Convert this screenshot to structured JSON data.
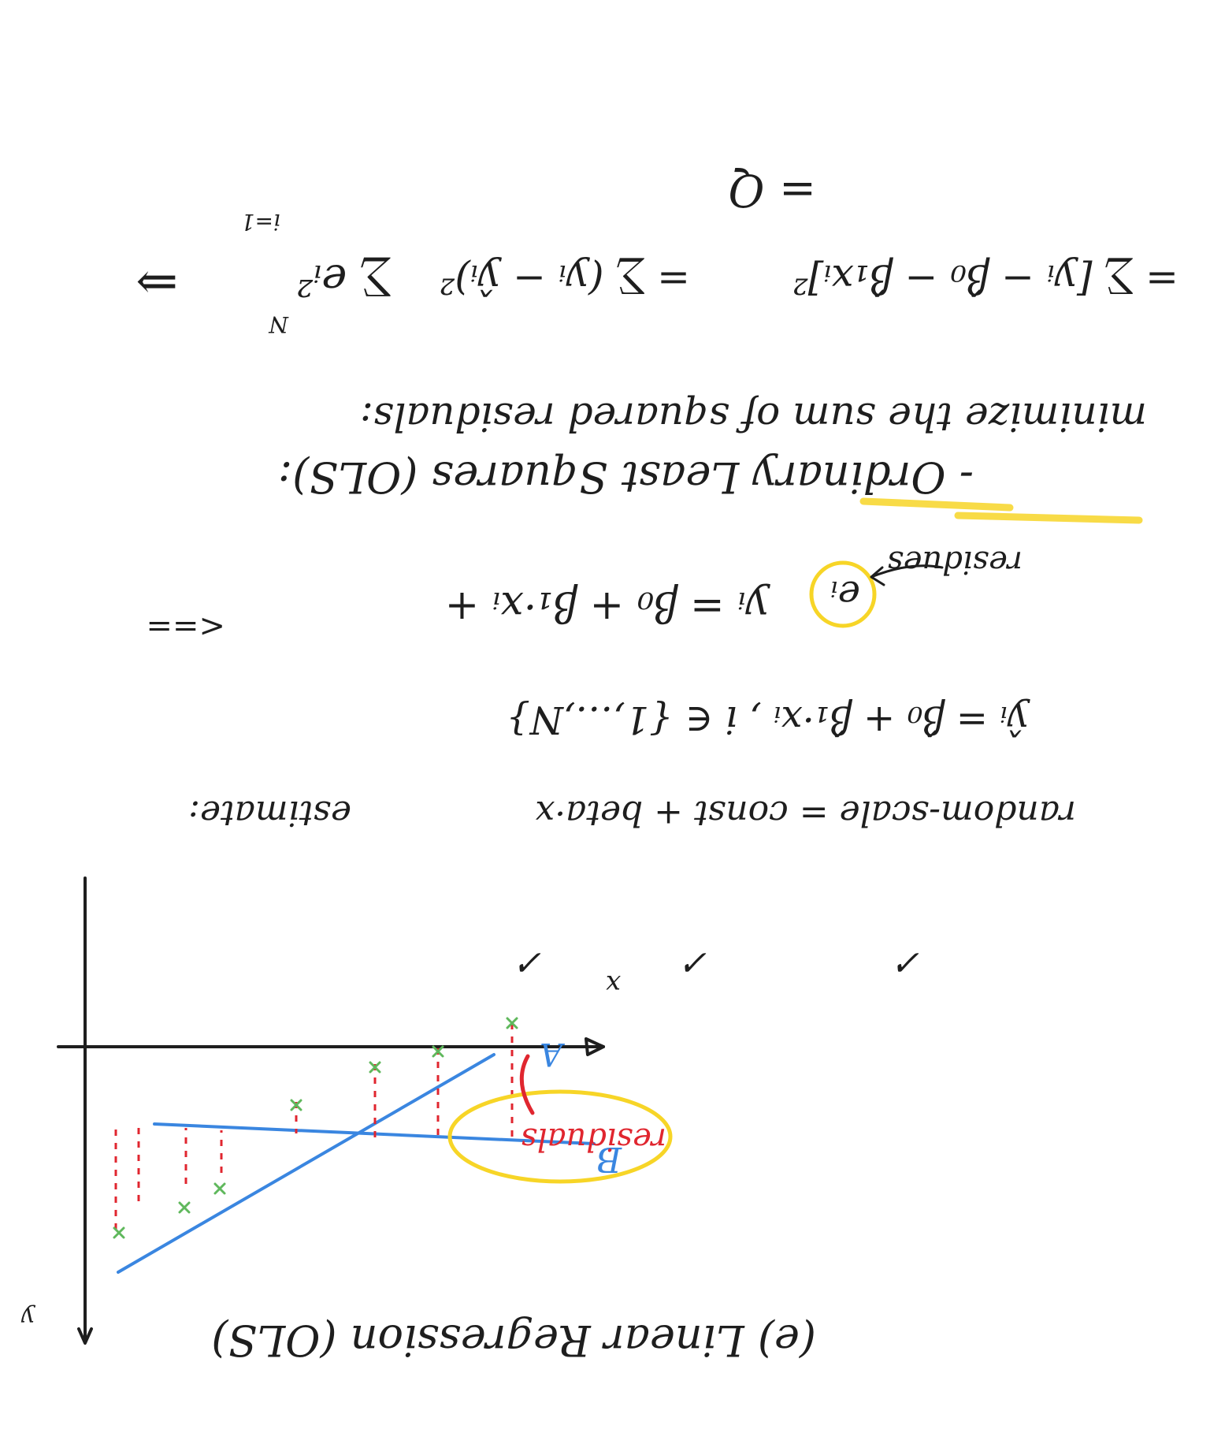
{
  "title": "(e) Linear Regression (OLS)",
  "axes": {
    "x_label": "x",
    "y_label": "y"
  },
  "lines": {
    "true_line_label": "A",
    "fitted_line_label": "B",
    "residual_callout": "residuals"
  },
  "estimate": {
    "prefix": "estimate:",
    "formula": "random-scale = const + beta·x",
    "check_marks": [
      "✓",
      "✓",
      "✓"
    ]
  },
  "model": {
    "arrow": "<==",
    "fit_equation": "ŷᵢ = β̂₀ + β̂₁·xᵢ ,   i ∈ {1,…,N}",
    "true_equation": "yᵢ = β₀ + β₁·xᵢ +",
    "error_term": "eᵢ",
    "error_label": "residues"
  },
  "ols_heading": "- Ordinary Least Squares (OLS):",
  "minimize_text": "minimize the sum of squared residuals:",
  "sum_equation": {
    "implies": "⇒",
    "left": "∑ eᵢ²",
    "middle": "= ∑ (yᵢ − ŷᵢ)²",
    "right": "= ∑ [yᵢ − β̂₀ − β̂₁xᵢ]²",
    "upper_limit": "N",
    "lower_limit": "i=1",
    "result": "= Q"
  },
  "colors": {
    "ink": "#1e1e1e",
    "blue": "#3a86e0",
    "red": "#e0262f",
    "green": "#5fb85c",
    "highlight": "#f7d527"
  }
}
